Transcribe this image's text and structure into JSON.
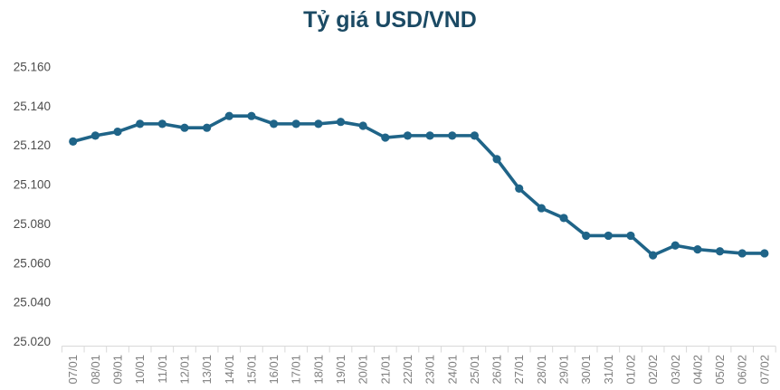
{
  "chart_data": {
    "type": "line",
    "title": "Tỷ giá USD/VND",
    "categories": [
      "07/01",
      "08/01",
      "09/01",
      "10/01",
      "11/01",
      "12/01",
      "13/01",
      "14/01",
      "15/01",
      "16/01",
      "17/01",
      "18/01",
      "19/01",
      "20/01",
      "21/01",
      "22/01",
      "23/01",
      "24/01",
      "25/01",
      "26/01",
      "27/01",
      "28/01",
      "29/01",
      "30/01",
      "31/01",
      "01/02",
      "02/02",
      "03/02",
      "04/02",
      "05/02",
      "06/02",
      "07/02"
    ],
    "values": [
      25122,
      25125,
      25127,
      25131,
      25131,
      25129,
      25129,
      25135,
      25135,
      25131,
      25131,
      25131,
      25132,
      25130,
      25124,
      25125,
      25125,
      25125,
      25125,
      25113,
      25098,
      25088,
      25083,
      25074,
      25074,
      25074,
      25064,
      25069,
      25067,
      25066,
      25065,
      25065
    ],
    "ylim": [
      25020,
      25160
    ],
    "ytick_step": 20,
    "ytick_labels": [
      "25.020",
      "25.040",
      "25.060",
      "25.080",
      "25.100",
      "25.120",
      "25.140",
      "25.160"
    ],
    "xlabel": "",
    "ylabel": "",
    "grid": false,
    "legend": false,
    "marker": "circle",
    "x_labels_rotated": true,
    "colors": {
      "series": "#1F6488",
      "title": "#1B4A64",
      "axis": "#D9D9D9",
      "ytick_text": "#4D4D4D",
      "xtick_text": "#7F7F7F",
      "background": "#FFFFFF"
    }
  }
}
